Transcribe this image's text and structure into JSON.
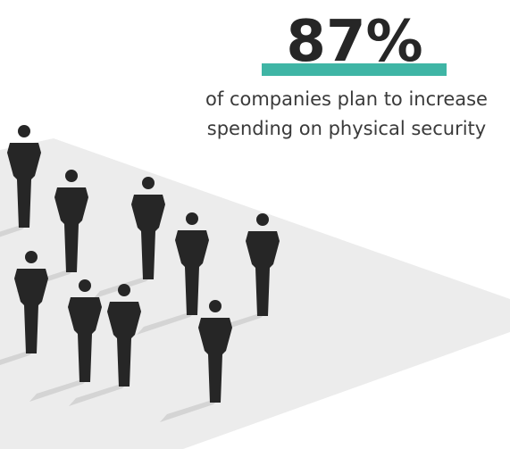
{
  "headline": "87%",
  "caption": [
    "of companies plan to increase",
    "spending on physical security"
  ]
}
